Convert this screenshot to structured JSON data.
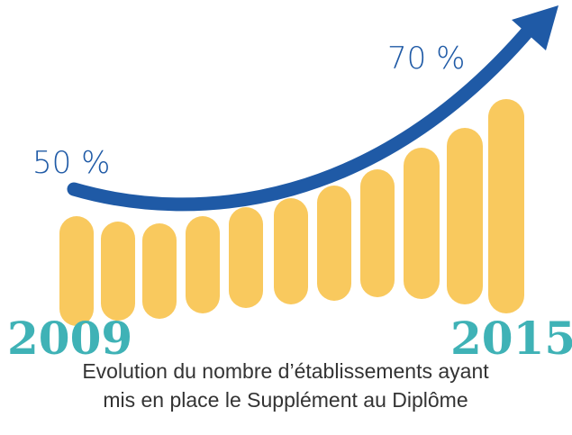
{
  "labels": {
    "start_percent": "50 %",
    "end_percent": "70 %",
    "start_year": "2009",
    "end_year": "2015"
  },
  "caption": {
    "line1": "Evolution du nombre d’établissements ayant",
    "line2": "mis en place le Supplément au Diplôme"
  }
}
